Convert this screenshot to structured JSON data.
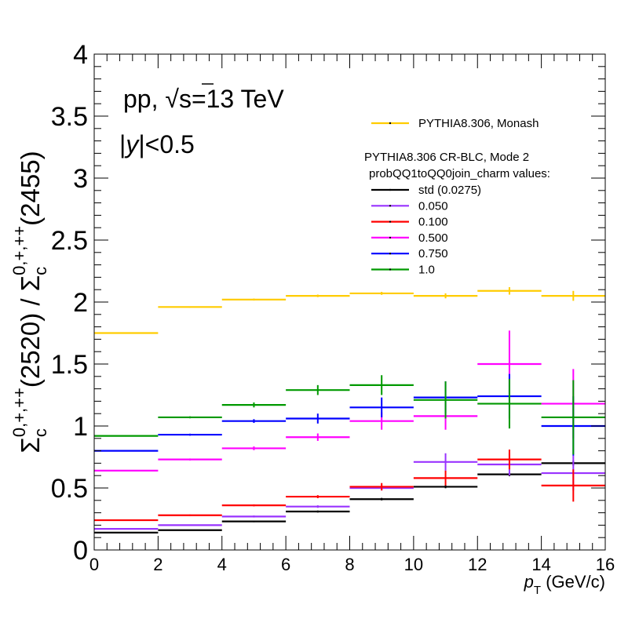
{
  "chart_data": {
    "type": "scatter",
    "style": "histogram-steps-with-error-bars",
    "xlabel_main": "p",
    "xlabel_sub": "T",
    "xlabel_unit": " (GeV/c)",
    "ylabel": "Σc0,+,++(2520) / Σc0,+,++(2455)",
    "ylabel_parts": {
      "sym1": "Σ",
      "sub1": "c",
      "sup1": "0,+,++",
      "mid": "(2520) / ",
      "sym2": "Σ",
      "sub2": "c",
      "sup2": "0,+,++",
      "end": "(2455)"
    },
    "xlim": [
      0,
      16
    ],
    "ylim": [
      0,
      4
    ],
    "x_ticks": [
      "0",
      "2",
      "4",
      "6",
      "8",
      "10",
      "12",
      "14",
      "16"
    ],
    "x_tick_values": [
      0,
      2,
      4,
      6,
      8,
      10,
      12,
      14,
      16
    ],
    "y_ticks": [
      "0",
      "0.5",
      "1",
      "1.5",
      "2",
      "2.5",
      "3",
      "3.5",
      "4"
    ],
    "y_tick_values": [
      0,
      0.5,
      1,
      1.5,
      2,
      2.5,
      3,
      3.5,
      4
    ],
    "bin_edges": [
      0,
      2,
      4,
      6,
      8,
      10,
      12,
      14,
      16
    ],
    "annotations": {
      "system": "pp, √s=13 TeV",
      "system_parts": {
        "pre": "pp, ",
        "root": "√",
        "s": "s",
        "post": "=13 TeV"
      },
      "rapidity": "|y|<0.5",
      "rapidity_parts": {
        "bar1": "|",
        "y": "y",
        "rest": "|<0.5"
      }
    },
    "legend": {
      "position": "top-right",
      "header1": "PYTHIA8.306 CR-BLC, Mode 2",
      "header2": "probQQ1toQQ0join_charm values:"
    },
    "series": [
      {
        "name": "PYTHIA8.306, Monash",
        "color": "#ffcc00",
        "values": [
          1.75,
          1.96,
          2.02,
          2.05,
          2.07,
          2.05,
          2.09,
          2.05
        ],
        "errors": [
          0.005,
          0.005,
          0.008,
          0.01,
          0.012,
          0.02,
          0.03,
          0.04
        ]
      },
      {
        "name": "std (0.0275)",
        "color": "#000000",
        "values": [
          0.14,
          0.16,
          0.23,
          0.31,
          0.41,
          0.51,
          0.61,
          0.7
        ],
        "errors": [
          0.004,
          0.004,
          0.006,
          0.008,
          0.01,
          0.012,
          0.015,
          0.02
        ]
      },
      {
        "name": "0.050",
        "color": "#9933ff",
        "values": [
          0.17,
          0.2,
          0.27,
          0.35,
          0.5,
          0.71,
          0.69,
          0.62
        ],
        "errors": [
          0.005,
          0.005,
          0.008,
          0.01,
          0.02,
          0.07,
          0.09,
          0.14
        ]
      },
      {
        "name": "0.100",
        "color": "#ff0000",
        "values": [
          0.24,
          0.28,
          0.36,
          0.43,
          0.51,
          0.58,
          0.73,
          0.52
        ],
        "errors": [
          0.005,
          0.006,
          0.008,
          0.012,
          0.03,
          0.06,
          0.08,
          0.13
        ]
      },
      {
        "name": "0.500",
        "color": "#ff00ff",
        "values": [
          0.64,
          0.73,
          0.82,
          0.91,
          1.04,
          1.08,
          1.5,
          1.18
        ],
        "errors": [
          0.005,
          0.008,
          0.015,
          0.03,
          0.07,
          0.11,
          0.27,
          0.28
        ]
      },
      {
        "name": "0.750",
        "color": "#0000ff",
        "values": [
          0.8,
          0.93,
          1.04,
          1.06,
          1.15,
          1.23,
          1.24,
          1.0
        ],
        "errors": [
          0.005,
          0.008,
          0.015,
          0.04,
          0.08,
          0.13,
          0.18,
          0.24
        ]
      },
      {
        "name": "1.0",
        "color": "#009900",
        "values": [
          0.92,
          1.07,
          1.17,
          1.29,
          1.33,
          1.21,
          1.18,
          1.07
        ],
        "errors": [
          0.005,
          0.008,
          0.02,
          0.04,
          0.08,
          0.15,
          0.2,
          0.3
        ]
      }
    ]
  }
}
